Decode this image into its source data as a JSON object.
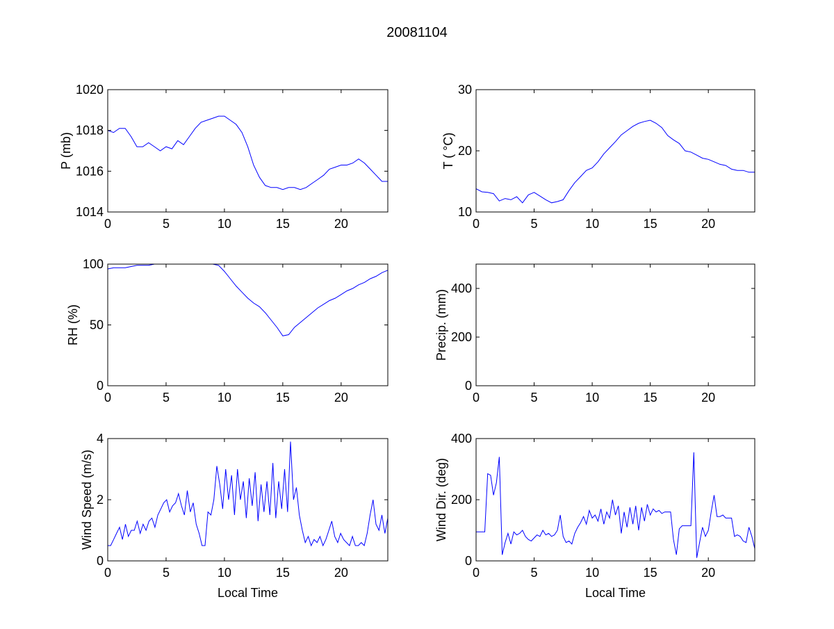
{
  "figure": {
    "title": "20081104"
  },
  "colors": {
    "line": "#0000ff",
    "axes": "#000000",
    "background": "#ffffff"
  },
  "chart_data": [
    {
      "type": "line",
      "id": "pressure",
      "title": "",
      "xlabel": "",
      "ylabel": "P (mb)",
      "xlim": [
        0,
        24
      ],
      "ylim": [
        1014,
        1020
      ],
      "xticks": [
        "0",
        "5",
        "10",
        "15",
        "20"
      ],
      "yticks": [
        "1014",
        "1016",
        "1018",
        "1020"
      ],
      "x_range": [
        0,
        24
      ],
      "values": [
        1018.0,
        1017.9,
        1018.1,
        1018.1,
        1017.7,
        1017.2,
        1017.2,
        1017.4,
        1017.2,
        1017.0,
        1017.2,
        1017.1,
        1017.5,
        1017.3,
        1017.7,
        1018.1,
        1018.4,
        1018.5,
        1018.6,
        1018.7,
        1018.7,
        1018.5,
        1018.3,
        1017.9,
        1017.2,
        1016.3,
        1015.7,
        1015.3,
        1015.2,
        1015.2,
        1015.1,
        1015.2,
        1015.2,
        1015.1,
        1015.2,
        1015.4,
        1015.6,
        1015.8,
        1016.1,
        1016.2,
        1016.3,
        1016.3,
        1016.4,
        1016.6,
        1016.4,
        1016.1,
        1015.8,
        1015.5,
        1015.5
      ]
    },
    {
      "type": "line",
      "id": "temperature",
      "title": "",
      "xlabel": "",
      "ylabel": "T ( °C)",
      "xlim": [
        0,
        24
      ],
      "ylim": [
        10,
        30
      ],
      "xticks": [
        "0",
        "5",
        "10",
        "15",
        "20"
      ],
      "yticks": [
        "10",
        "20",
        "30"
      ],
      "x_range": [
        0,
        24
      ],
      "values": [
        13.8,
        13.3,
        13.2,
        13.0,
        11.8,
        12.2,
        12.0,
        12.5,
        11.5,
        12.8,
        13.2,
        12.6,
        12.0,
        11.5,
        11.7,
        12.0,
        13.5,
        14.8,
        15.8,
        16.8,
        17.2,
        18.2,
        19.5,
        20.5,
        21.5,
        22.6,
        23.3,
        24.0,
        24.5,
        24.8,
        25.0,
        24.5,
        23.8,
        22.5,
        21.8,
        21.2,
        20.0,
        19.8,
        19.3,
        18.8,
        18.6,
        18.2,
        17.8,
        17.6,
        17.0,
        16.8,
        16.8,
        16.5,
        16.5
      ]
    },
    {
      "type": "line",
      "id": "humidity",
      "title": "",
      "xlabel": "",
      "ylabel": "RH (%)",
      "xlim": [
        0,
        24
      ],
      "ylim": [
        0,
        100
      ],
      "xticks": [
        "0",
        "5",
        "10",
        "15",
        "20"
      ],
      "yticks": [
        "0",
        "50",
        "100"
      ],
      "x_range": [
        0,
        24
      ],
      "values": [
        96,
        97,
        97,
        97,
        98,
        99,
        99,
        99,
        100,
        100,
        100,
        100,
        100,
        100,
        100,
        100,
        100,
        100,
        100,
        99,
        94,
        88,
        82,
        77,
        72,
        68,
        65,
        60,
        54,
        48,
        41,
        42,
        48,
        52,
        56,
        60,
        64,
        67,
        70,
        72,
        75,
        78,
        80,
        83,
        85,
        88,
        90,
        93,
        95
      ]
    },
    {
      "type": "line",
      "id": "precip",
      "title": "",
      "xlabel": "",
      "ylabel": "Precip. (mm)",
      "xlim": [
        0,
        24
      ],
      "ylim": [
        0,
        500
      ],
      "xticks": [
        "0",
        "5",
        "10",
        "15",
        "20"
      ],
      "yticks": [
        "0",
        "200",
        "400"
      ],
      "x_range": [
        0,
        24
      ],
      "values": []
    },
    {
      "type": "line",
      "id": "windspeed",
      "title": "",
      "xlabel": "Local Time",
      "ylabel": "Wind Speed (m/s)",
      "xlim": [
        0,
        24
      ],
      "ylim": [
        0,
        4
      ],
      "xticks": [
        "0",
        "5",
        "10",
        "15",
        "20"
      ],
      "yticks": [
        "0",
        "2",
        "4"
      ],
      "x_range": [
        0,
        24
      ],
      "values": [
        0.5,
        0.5,
        0.7,
        0.9,
        1.1,
        0.7,
        1.2,
        0.8,
        1.0,
        1.0,
        1.3,
        0.9,
        1.2,
        1.0,
        1.3,
        1.4,
        1.1,
        1.5,
        1.7,
        1.9,
        2.0,
        1.6,
        1.8,
        1.9,
        2.2,
        1.8,
        1.5,
        2.3,
        1.6,
        1.9,
        1.2,
        0.9,
        0.5,
        0.5,
        1.6,
        1.5,
        2.0,
        3.1,
        2.5,
        1.7,
        3.0,
        2.0,
        2.8,
        1.5,
        3.0,
        2.0,
        2.6,
        1.4,
        2.7,
        1.8,
        2.9,
        1.3,
        2.5,
        1.6,
        2.6,
        1.5,
        3.2,
        1.4,
        2.6,
        1.7,
        3.0,
        1.6,
        3.9,
        2.0,
        2.4,
        1.5,
        1.0,
        0.6,
        0.8,
        0.5,
        0.7,
        0.6,
        0.8,
        0.5,
        0.7,
        1.0,
        1.3,
        0.8,
        0.6,
        0.9,
        0.7,
        0.6,
        0.5,
        0.8,
        0.5,
        0.5,
        0.6,
        0.5,
        0.9,
        1.5,
        2.0,
        1.2,
        1.0,
        1.5,
        0.9,
        1.4
      ]
    },
    {
      "type": "line",
      "id": "winddir",
      "title": "",
      "xlabel": "Local Time",
      "ylabel": "Wind Dir. (deg)",
      "xlim": [
        0,
        24
      ],
      "ylim": [
        0,
        400
      ],
      "xticks": [
        "0",
        "5",
        "10",
        "15",
        "20"
      ],
      "yticks": [
        "0",
        "200",
        "400"
      ],
      "x_range": [
        0,
        24
      ],
      "values": [
        95,
        95,
        95,
        95,
        285,
        280,
        215,
        255,
        340,
        20,
        60,
        90,
        55,
        95,
        85,
        90,
        100,
        80,
        70,
        65,
        75,
        85,
        80,
        100,
        85,
        90,
        80,
        85,
        100,
        150,
        80,
        60,
        65,
        55,
        90,
        110,
        125,
        145,
        120,
        165,
        140,
        150,
        130,
        170,
        120,
        160,
        140,
        200,
        150,
        180,
        90,
        160,
        110,
        175,
        120,
        180,
        100,
        175,
        130,
        185,
        150,
        170,
        160,
        165,
        155,
        160,
        160,
        160,
        70,
        20,
        105,
        115,
        115,
        115,
        115,
        355,
        10,
        60,
        110,
        80,
        100,
        160,
        215,
        145,
        145,
        150,
        140,
        140,
        140,
        80,
        85,
        80,
        65,
        60,
        110,
        80,
        40
      ]
    }
  ]
}
